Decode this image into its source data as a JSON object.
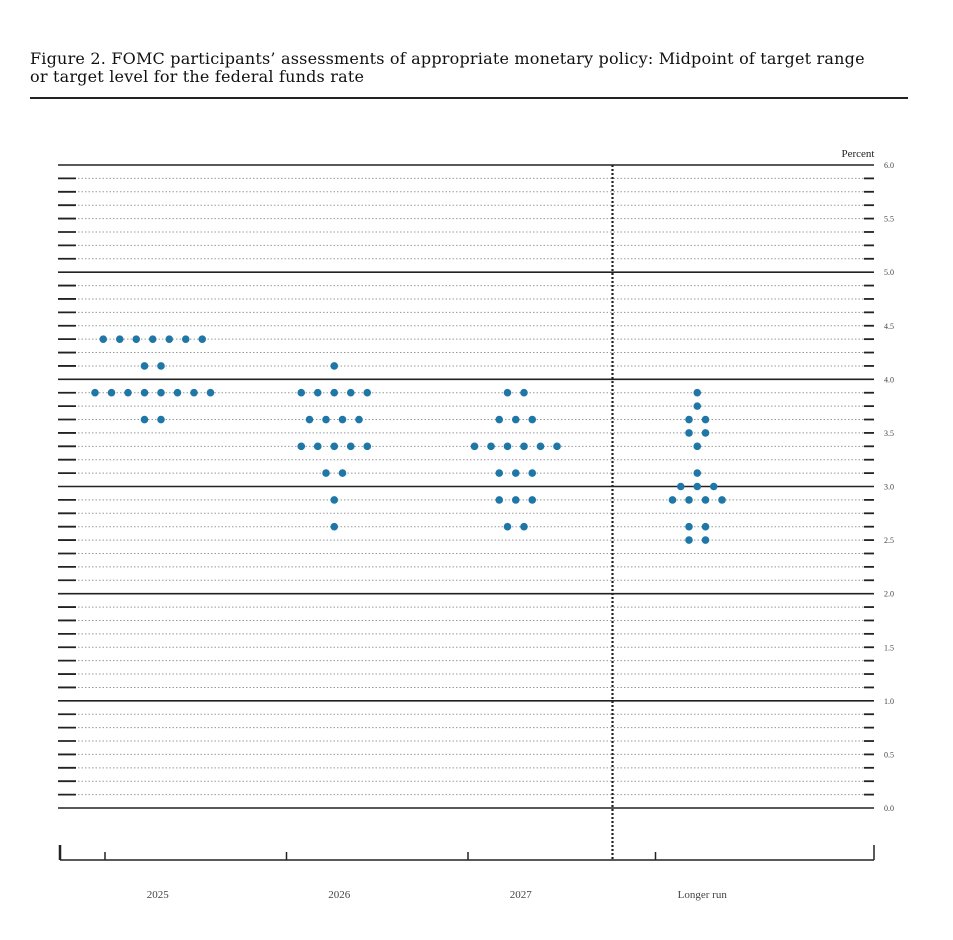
{
  "figure": {
    "title_line1": "Figure 2.  FOMC participants’ assessments of appropriate monetary policy:  Midpoint of target range",
    "title_line2": "or target level for the federal funds rate"
  },
  "chart_data": {
    "type": "scatter",
    "title": "Figure 2.  FOMC participants’ assessments of appropriate monetary policy:  Midpoint of target range or target level for the federal funds rate",
    "ylabel": "Percent",
    "ylim": [
      0,
      6
    ],
    "yticks": [
      "0.0",
      "0.5",
      "1.0",
      "1.5",
      "2.0",
      "2.5",
      "3.0",
      "3.5",
      "4.0",
      "4.5",
      "5.0",
      "5.5",
      "6.0"
    ],
    "categories": [
      "2025",
      "2026",
      "2027",
      "Longer run"
    ],
    "dot_color": "#1f77a8",
    "grid": true,
    "separator_before": "Longer run",
    "distributions": [
      {
        "category": "2025",
        "points": [
          {
            "y": 4.375,
            "count": 7
          },
          {
            "y": 4.125,
            "count": 2
          },
          {
            "y": 3.875,
            "count": 8
          },
          {
            "y": 3.625,
            "count": 2
          }
        ]
      },
      {
        "category": "2026",
        "points": [
          {
            "y": 4.125,
            "count": 1
          },
          {
            "y": 3.875,
            "count": 5
          },
          {
            "y": 3.625,
            "count": 4
          },
          {
            "y": 3.375,
            "count": 5
          },
          {
            "y": 3.125,
            "count": 2
          },
          {
            "y": 2.875,
            "count": 1
          },
          {
            "y": 2.625,
            "count": 1
          }
        ]
      },
      {
        "category": "2027",
        "points": [
          {
            "y": 3.875,
            "count": 2
          },
          {
            "y": 3.625,
            "count": 3
          },
          {
            "y": 3.375,
            "count": 6
          },
          {
            "y": 3.125,
            "count": 3
          },
          {
            "y": 2.875,
            "count": 3
          },
          {
            "y": 2.625,
            "count": 2
          }
        ]
      },
      {
        "category": "Longer run",
        "points": [
          {
            "y": 3.875,
            "count": 1
          },
          {
            "y": 3.75,
            "count": 1
          },
          {
            "y": 3.625,
            "count": 2
          },
          {
            "y": 3.5,
            "count": 2
          },
          {
            "y": 3.375,
            "count": 1
          },
          {
            "y": 3.125,
            "count": 1
          },
          {
            "y": 3.0,
            "count": 3
          },
          {
            "y": 2.875,
            "count": 4
          },
          {
            "y": 2.625,
            "count": 2
          },
          {
            "y": 2.5,
            "count": 2
          }
        ]
      }
    ]
  }
}
